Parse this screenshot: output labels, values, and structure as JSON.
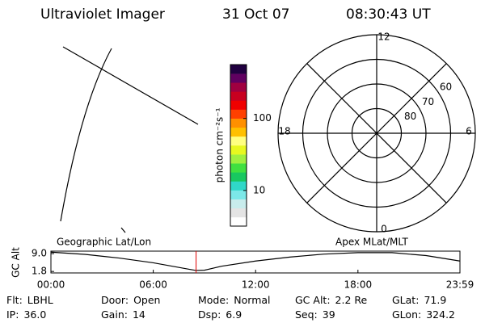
{
  "header": {
    "instrument": "Ultraviolet Imager",
    "date": "31 Oct 07",
    "time": "08:30:43 UT"
  },
  "colorbar": {
    "label": "photon cm⁻²s⁻¹",
    "log_scale": true,
    "ylim": [
      3.2,
      560
    ],
    "yticks": [
      10,
      100
    ],
    "colors": [
      "#ffffff",
      "#e4e4e4",
      "#c8ecec",
      "#7ce8e8",
      "#30d8c8",
      "#18c860",
      "#40e040",
      "#a0f040",
      "#e8f820",
      "#ffff80",
      "#ffc000",
      "#ff9000",
      "#ff4000",
      "#f00000",
      "#c80020",
      "#a00040",
      "#600060",
      "#200040"
    ]
  },
  "image": {
    "geo_label": "Geographic Lat/Lon",
    "apex_label": "Apex MLat/MLT"
  },
  "polar": {
    "lat_lim": [
      90,
      50
    ],
    "lat_ticks": [
      60,
      70,
      80
    ],
    "mlt_ticks": [
      12,
      6,
      18,
      0
    ]
  },
  "chart_data": {
    "type": "line",
    "ylabel": "GC Alt",
    "x": [
      0,
      2,
      4,
      6,
      8,
      8.5,
      9,
      10,
      12,
      14,
      16,
      18,
      20,
      22,
      23.98
    ],
    "series": [
      {
        "name": "GC Alt",
        "color": "#000000",
        "values": [
          9.6,
          8.7,
          7.2,
          5.3,
          2.8,
          2.2,
          2.3,
          3.9,
          6.0,
          7.6,
          8.8,
          9.4,
          9.4,
          8.2,
          6.0
        ]
      }
    ],
    "current_time": 8.51,
    "current_color": "#e00000",
    "xlim": [
      0,
      23.98
    ],
    "xticks": [
      {
        "value": 0,
        "label": "00:00"
      },
      {
        "value": 6,
        "label": "06:00"
      },
      {
        "value": 12,
        "label": "12:00"
      },
      {
        "value": 18,
        "label": "18:00"
      },
      {
        "value": 23.98,
        "label": "23:59"
      }
    ],
    "ylim": [
      1.2,
      10.0
    ],
    "yticks": [
      {
        "value": 9,
        "label": "9.0"
      },
      1.8
    ]
  },
  "footer": [
    [
      {
        "label": "Flt:",
        "value": "LBHL"
      },
      {
        "label": "Door:",
        "value": "Open"
      },
      {
        "label": "Mode:",
        "value": "Normal"
      },
      {
        "label": "GC Alt:",
        "value": "2.2 Re"
      },
      {
        "label": "GLat:",
        "value": "71.9"
      }
    ],
    [
      {
        "label": "IP:",
        "value": "36.0"
      },
      {
        "label": "Gain:",
        "value": "14"
      },
      {
        "label": "Dsp:",
        "value": "6.9"
      },
      {
        "label": "Seq:",
        "value": "39"
      },
      {
        "label": "GLon:",
        "value": "324.2"
      }
    ]
  ]
}
